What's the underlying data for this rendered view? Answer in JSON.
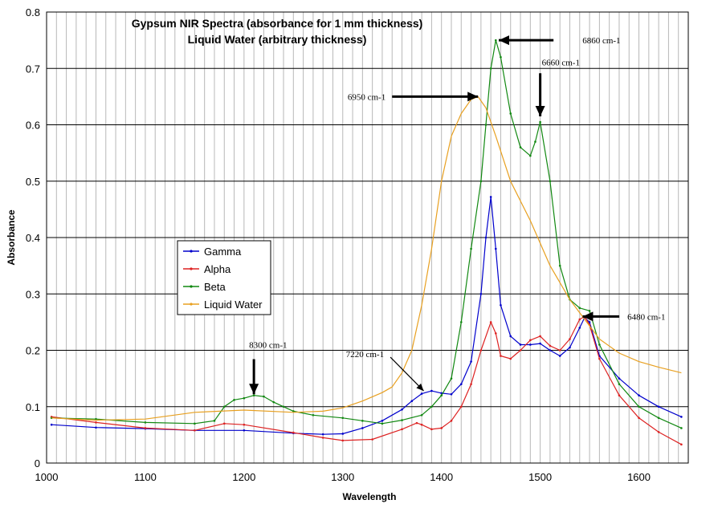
{
  "chart_data": {
    "type": "line",
    "title": "Gypsum NIR Spectra  (absorbance for 1 mm thickness)",
    "subtitle": "Liquid Water (arbitrary thickness)",
    "xlabel": "Wavelength",
    "ylabel": "Absorbance",
    "xlim": [
      1000,
      1650
    ],
    "ylim": [
      0,
      0.8
    ],
    "x_ticks": [
      1000,
      1100,
      1200,
      1300,
      1400,
      1500,
      1600
    ],
    "y_ticks": [
      0,
      0.1,
      0.2,
      0.3,
      0.4,
      0.5,
      0.6,
      0.7,
      0.8
    ],
    "y_tick_labels": [
      "0",
      "0.1",
      "0.2",
      "0.3",
      "0.4",
      "0.5",
      "0.6",
      "0.7",
      "0.8"
    ],
    "grid": true,
    "legend_position": "center-left",
    "series": [
      {
        "name": "Gamma",
        "color": "#0000cc",
        "x": [
          1005,
          1050,
          1100,
          1150,
          1200,
          1250,
          1280,
          1300,
          1320,
          1340,
          1360,
          1370,
          1380,
          1390,
          1400,
          1410,
          1420,
          1430,
          1440,
          1445,
          1450,
          1455,
          1460,
          1470,
          1480,
          1490,
          1500,
          1510,
          1520,
          1530,
          1540,
          1545,
          1550,
          1560,
          1580,
          1600,
          1620,
          1643
        ],
        "y": [
          0.068,
          0.063,
          0.061,
          0.058,
          0.058,
          0.053,
          0.051,
          0.052,
          0.062,
          0.075,
          0.095,
          0.11,
          0.123,
          0.128,
          0.124,
          0.122,
          0.14,
          0.18,
          0.3,
          0.4,
          0.472,
          0.38,
          0.28,
          0.225,
          0.21,
          0.21,
          0.212,
          0.2,
          0.19,
          0.205,
          0.24,
          0.258,
          0.25,
          0.19,
          0.15,
          0.12,
          0.1,
          0.082
        ]
      },
      {
        "name": "Alpha",
        "color": "#dd2222",
        "x": [
          1005,
          1050,
          1100,
          1150,
          1180,
          1200,
          1250,
          1280,
          1300,
          1330,
          1360,
          1375,
          1380,
          1390,
          1400,
          1410,
          1420,
          1430,
          1440,
          1450,
          1455,
          1460,
          1470,
          1480,
          1490,
          1500,
          1510,
          1520,
          1530,
          1540,
          1545,
          1550,
          1560,
          1580,
          1600,
          1620,
          1643
        ],
        "y": [
          0.082,
          0.072,
          0.062,
          0.058,
          0.07,
          0.068,
          0.054,
          0.045,
          0.04,
          0.042,
          0.06,
          0.071,
          0.068,
          0.06,
          0.062,
          0.075,
          0.1,
          0.14,
          0.2,
          0.25,
          0.23,
          0.19,
          0.185,
          0.2,
          0.218,
          0.225,
          0.208,
          0.2,
          0.22,
          0.255,
          0.26,
          0.245,
          0.185,
          0.12,
          0.08,
          0.055,
          0.033
        ]
      },
      {
        "name": "Beta",
        "color": "#118811",
        "x": [
          1005,
          1050,
          1100,
          1150,
          1170,
          1180,
          1190,
          1200,
          1210,
          1220,
          1230,
          1240,
          1250,
          1270,
          1300,
          1320,
          1340,
          1360,
          1380,
          1390,
          1400,
          1410,
          1420,
          1430,
          1440,
          1445,
          1450,
          1455,
          1460,
          1470,
          1480,
          1490,
          1495,
          1500,
          1510,
          1520,
          1530,
          1540,
          1550,
          1560,
          1580,
          1600,
          1620,
          1643
        ],
        "y": [
          0.08,
          0.078,
          0.072,
          0.07,
          0.075,
          0.1,
          0.112,
          0.115,
          0.12,
          0.118,
          0.108,
          0.1,
          0.092,
          0.085,
          0.08,
          0.075,
          0.07,
          0.076,
          0.085,
          0.1,
          0.12,
          0.15,
          0.25,
          0.38,
          0.5,
          0.6,
          0.7,
          0.75,
          0.72,
          0.62,
          0.56,
          0.545,
          0.57,
          0.605,
          0.5,
          0.35,
          0.29,
          0.275,
          0.27,
          0.21,
          0.14,
          0.1,
          0.08,
          0.062
        ]
      },
      {
        "name": "Liquid Water",
        "color": "#e8a020",
        "x": [
          1005,
          1050,
          1100,
          1150,
          1200,
          1250,
          1280,
          1300,
          1320,
          1340,
          1350,
          1360,
          1370,
          1380,
          1390,
          1400,
          1410,
          1420,
          1430,
          1437,
          1445,
          1455,
          1470,
          1490,
          1510,
          1530,
          1545,
          1560,
          1580,
          1600,
          1620,
          1643
        ],
        "y": [
          0.08,
          0.076,
          0.078,
          0.09,
          0.094,
          0.09,
          0.092,
          0.098,
          0.11,
          0.125,
          0.135,
          0.16,
          0.2,
          0.28,
          0.38,
          0.5,
          0.58,
          0.62,
          0.645,
          0.65,
          0.63,
          0.58,
          0.5,
          0.43,
          0.35,
          0.29,
          0.255,
          0.22,
          0.195,
          0.18,
          0.17,
          0.16
        ]
      }
    ],
    "annotations": [
      {
        "text": "6860 cm-1",
        "x": 1458,
        "y": 0.75,
        "label_x": 1520,
        "label_y": 0.75
      },
      {
        "text": "6660 cm-1",
        "x": 1500,
        "y": 0.615,
        "label_x": 1500,
        "label_y": 0.7
      },
      {
        "text": "6950 cm-1",
        "x": 1437,
        "y": 0.65,
        "label_x": 1350,
        "label_y": 0.65
      },
      {
        "text": "6480 cm-1",
        "x": 1543,
        "y": 0.26,
        "label_x": 1585,
        "label_y": 0.26
      },
      {
        "text": "8300 cm-1",
        "x": 1210,
        "y": 0.122,
        "label_x": 1210,
        "label_y": 0.19
      },
      {
        "text": "7220 cm-1",
        "x": 1382,
        "y": 0.128,
        "label_x": 1345,
        "label_y": 0.185
      }
    ]
  }
}
